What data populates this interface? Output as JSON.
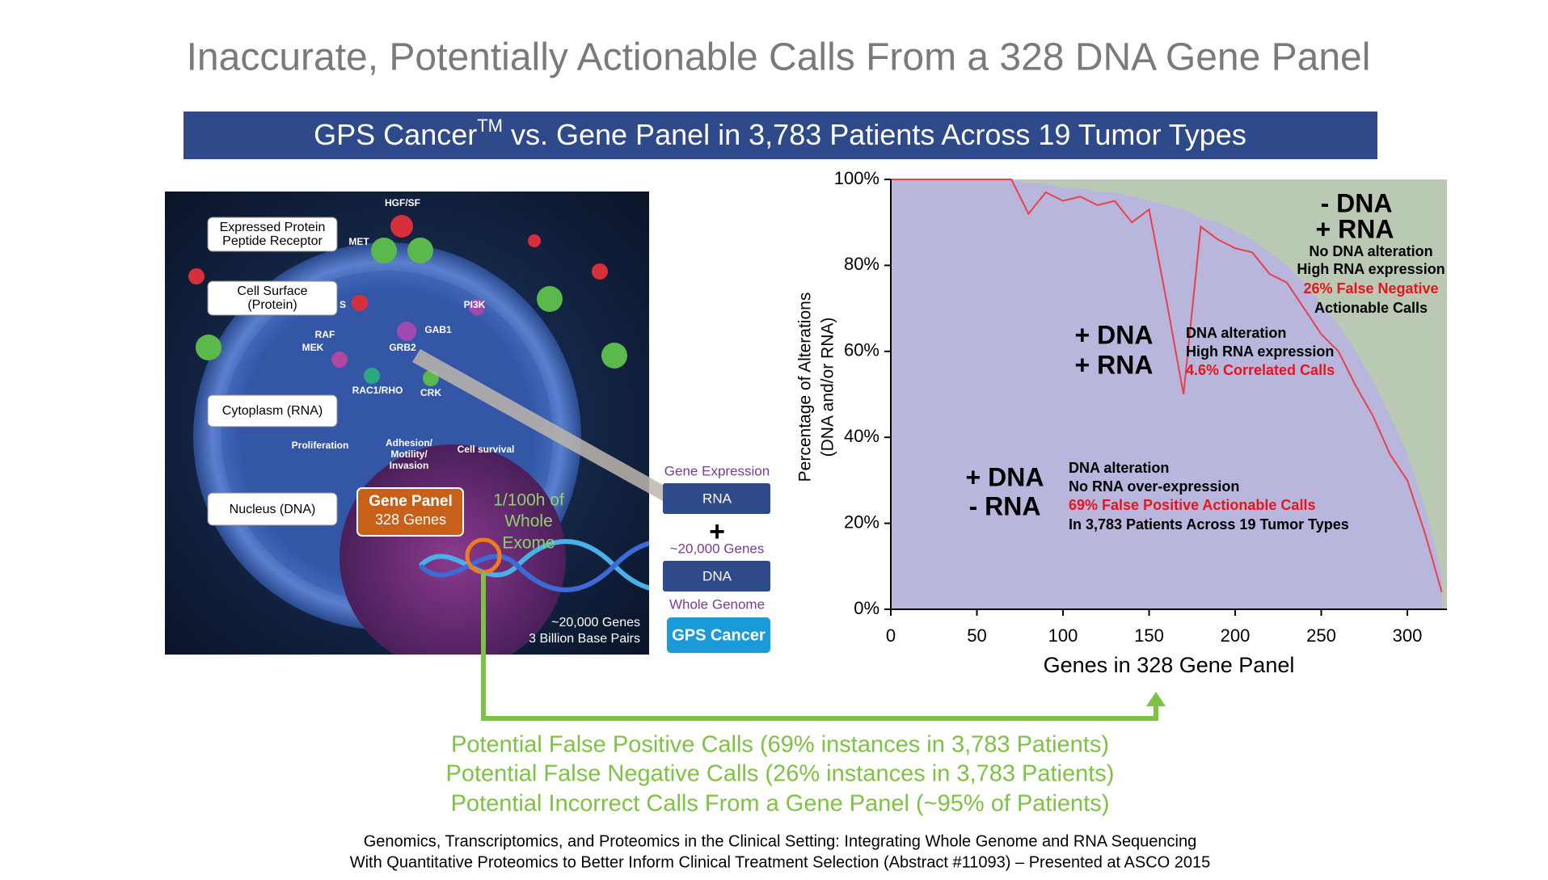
{
  "title": "Inaccurate, Potentially Actionable Calls From a 328 DNA Gene Panel",
  "banner": {
    "pre": "GPS Cancer",
    "tm": "TM",
    "post": " vs. Gene Panel in 3,783 Patients Across 19 Tumor Types"
  },
  "cell": {
    "boxes": [
      "Expressed Protein",
      "Peptide Receptor",
      "Cell Surface",
      "(Protein)",
      "Cytoplasm  (RNA)",
      "Nucleus (DNA)"
    ],
    "labels": [
      "HGF/SF",
      "MET",
      "S",
      "RAF",
      "MEK",
      "GRB2",
      "GAB1",
      "PI3K",
      "RAC1/RHO",
      "CRK",
      "Proliferation",
      "Adhesion/",
      "Motility/",
      "Invasion",
      "Cell survival"
    ],
    "gene_panel": [
      "Gene Panel",
      "328 Genes"
    ],
    "exome": [
      "1/100h of",
      "Whole",
      "Exome"
    ],
    "genome": [
      "~20,000 Genes",
      "3 Billion Base Pairs"
    ]
  },
  "side": {
    "gene_expression": "Gene Expression",
    "rna": "RNA",
    "plus": "+",
    "genes": "~20,000 Genes",
    "dna": "DNA",
    "whole_genome": "Whole Genome",
    "gps": "GPS Cancer"
  },
  "chart_data": {
    "type": "area",
    "x": [
      0,
      10,
      20,
      30,
      40,
      50,
      60,
      70,
      80,
      90,
      100,
      110,
      120,
      130,
      140,
      150,
      160,
      170,
      180,
      190,
      200,
      210,
      220,
      230,
      240,
      250,
      260,
      270,
      280,
      290,
      300,
      310,
      320
    ],
    "series": [
      {
        "color": "#b9b6dd",
        "values": [
          100,
          100,
          100,
          100,
          100,
          100,
          100,
          100,
          99,
          99,
          98,
          98,
          97,
          97,
          96,
          95,
          94,
          93,
          91,
          90,
          88,
          86,
          83,
          80,
          76,
          71,
          66,
          60,
          53,
          45,
          36,
          24,
          8
        ]
      },
      {
        "color": "#e8414a",
        "values": [
          100,
          100,
          100,
          100,
          100,
          100,
          100,
          100,
          92,
          97,
          95,
          96,
          94,
          95,
          90,
          93,
          72,
          50,
          89,
          86,
          84,
          83,
          78,
          76,
          70,
          64,
          60,
          52,
          45,
          36,
          30,
          18,
          4
        ]
      }
    ],
    "background": "#b9c9b4",
    "xlim": [
      0,
      323
    ],
    "xticks": [
      0,
      50,
      100,
      150,
      200,
      250,
      300
    ],
    "ylim": [
      0,
      100
    ],
    "yticks": [
      {
        "value": 0,
        "label": "0%"
      },
      {
        "value": 20,
        "label": "20%"
      },
      {
        "value": 40,
        "label": "40%"
      },
      {
        "value": 60,
        "label": "60%"
      },
      {
        "value": 80,
        "label": "80%"
      },
      {
        "value": 100,
        "label": "100%"
      }
    ],
    "xlabel": "Genes in 328 Gene Panel",
    "ylabel": [
      "Percentage of Alterations",
      "(DNA and/or RNA)"
    ],
    "annotations": [
      {
        "text": "- DNA",
        "color": "#000"
      },
      {
        "text": "+ RNA",
        "color": "#000"
      },
      {
        "text": "No DNA alteration",
        "color": "#000"
      },
      {
        "text": "High RNA expression",
        "color": "#000"
      },
      {
        "text": "26% False Negative",
        "color": "#e8141c"
      },
      {
        "text": "Actionable Calls",
        "color": "#000"
      },
      {
        "text": "+ DNA",
        "color": "#000"
      },
      {
        "text": "+ RNA",
        "color": "#000"
      },
      {
        "text": "DNA alteration",
        "color": "#000"
      },
      {
        "text": "High RNA expression",
        "color": "#000"
      },
      {
        "text": "4.6% Correlated Calls",
        "color": "#e8141c"
      },
      {
        "text": "+ DNA",
        "color": "#000"
      },
      {
        "text": "- RNA",
        "color": "#000"
      },
      {
        "text": "DNA alteration",
        "color": "#000"
      },
      {
        "text": "No RNA over-expression",
        "color": "#000"
      },
      {
        "text": "69% False Positive Actionable Calls",
        "color": "#e8141c"
      },
      {
        "text": "In 3,783 Patients Across 19 Tumor Types",
        "color": "#000"
      }
    ]
  },
  "findings": [
    "Potential False Positive Calls (69% instances in 3,783 Patients)",
    "Potential False Negative Calls (26% instances in 3,783 Patients)",
    "Potential Incorrect Calls From a Gene Panel (~95% of Patients)"
  ],
  "footer": [
    "Genomics, Transcriptomics, and Proteomics in the Clinical Setting: Integrating Whole Genome and RNA Sequencing",
    "With Quantitative Proteomics to Better Inform Clinical Treatment Selection (Abstract #11093) – Presented at ASCO 2015"
  ]
}
